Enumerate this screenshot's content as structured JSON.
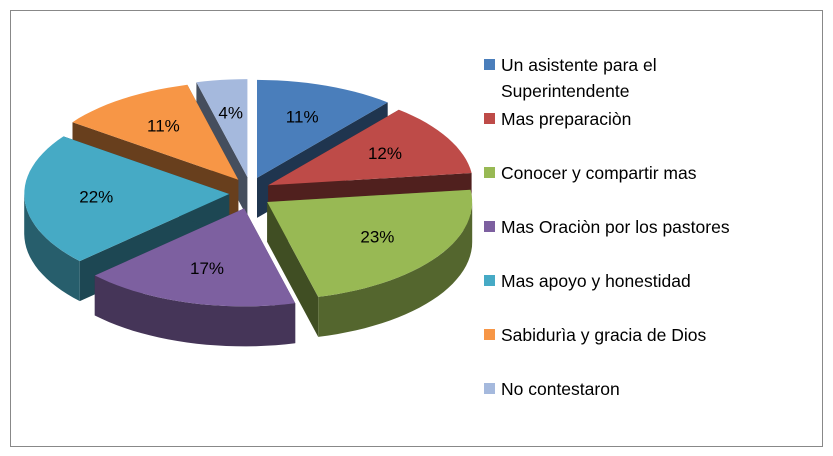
{
  "chart_data": {
    "type": "pie3d",
    "categories": [
      "Un asistente para el Superintendente",
      "Mas preparaciòn",
      "Conocer y compartir mas",
      "Mas Oraciòn por los pastores",
      "Mas apoyo y honestidad",
      "Sabidurìa y gracia de Dios",
      "No contestaron"
    ],
    "values": [
      11,
      12,
      23,
      17,
      22,
      11,
      4
    ],
    "value_labels": [
      "11%",
      "12%",
      "23%",
      "17%",
      "22%",
      "11%",
      "4%"
    ],
    "colors": [
      "#4a7ebb",
      "#be4b48",
      "#98b954",
      "#7d60a0",
      "#46aac5",
      "#f79646",
      "#a5b9dd"
    ],
    "legend": "right"
  }
}
